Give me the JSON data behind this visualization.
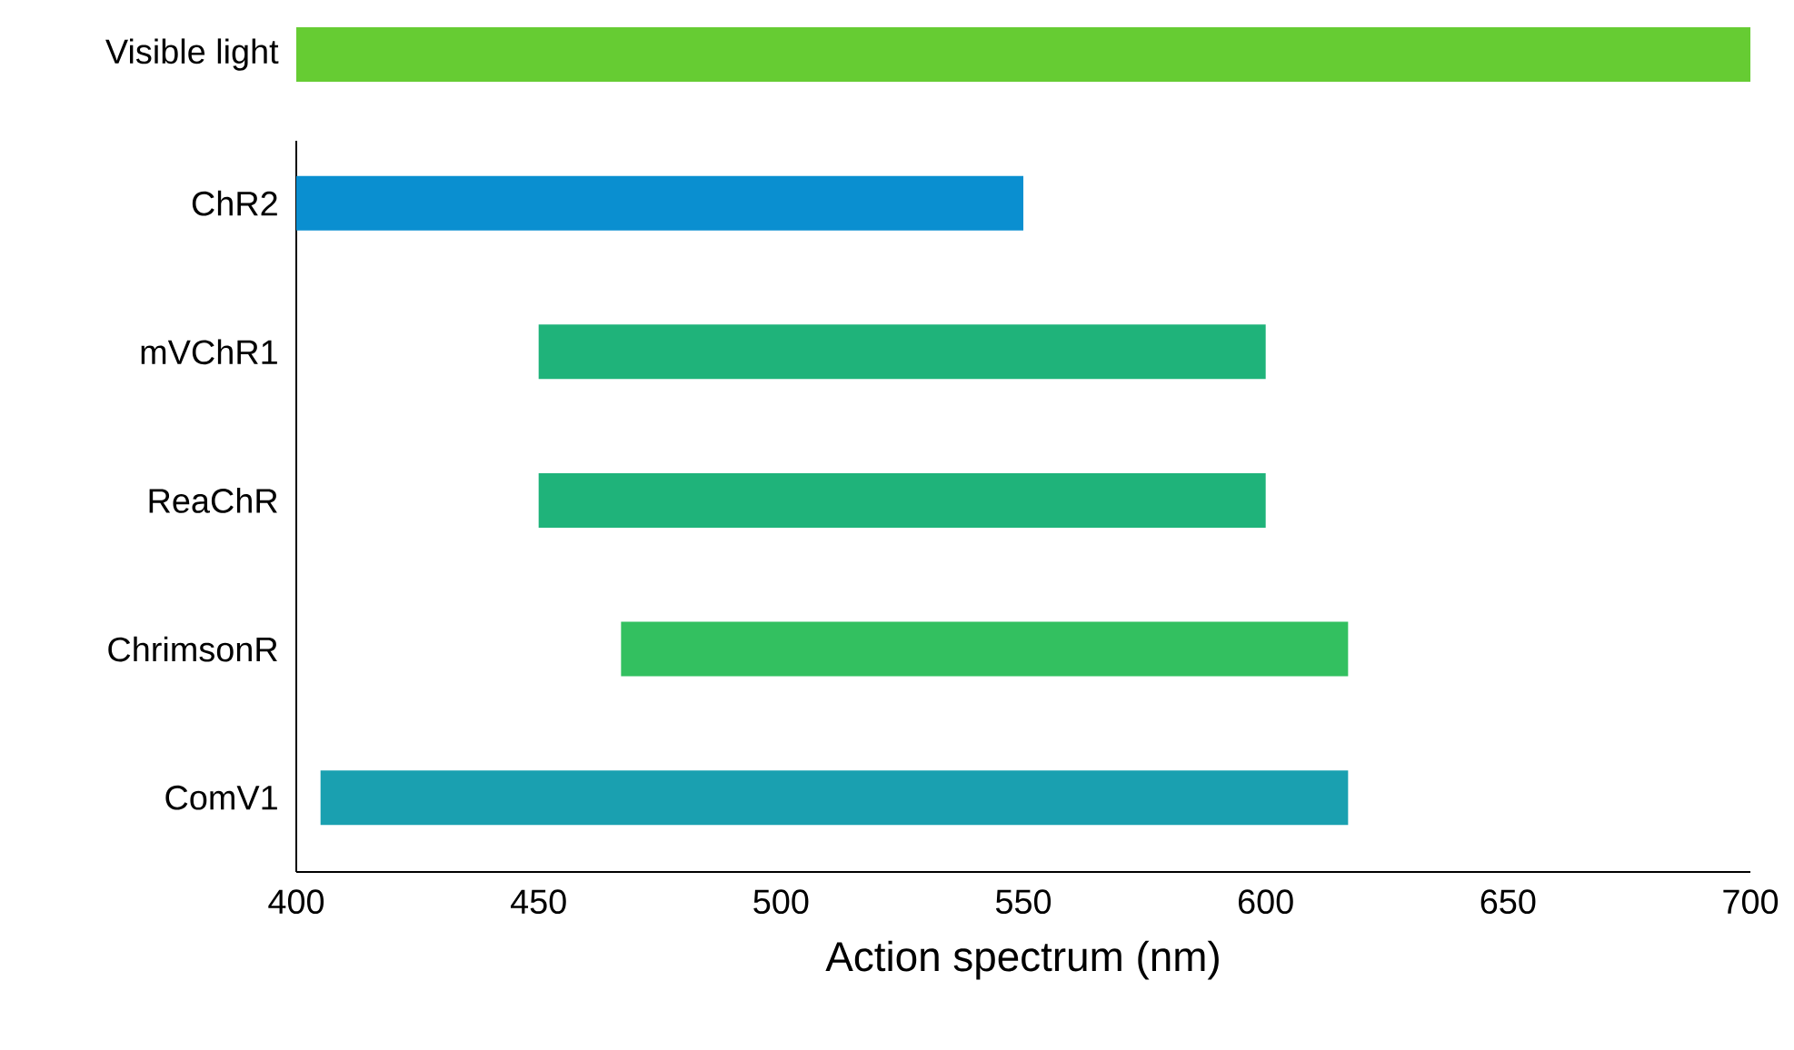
{
  "chart_data": {
    "type": "bar",
    "orientation": "horizontal",
    "categories": [
      "Visible light",
      "ChR2",
      "mVChR1",
      "ReaChR",
      "ChrimsonR",
      "ComV1"
    ],
    "base": [
      400,
      400,
      450,
      450,
      467,
      405
    ],
    "values": [
      300,
      150,
      150,
      150,
      150,
      212
    ],
    "colors": [
      "#66cc33",
      "#0a8fd0",
      "#1fb37a",
      "#1fb37a",
      "#33c060",
      "#1aa0b0"
    ],
    "xlabel": "Action spectrum (nm)",
    "xlim": [
      400,
      700
    ],
    "xticks": [
      400,
      450,
      500,
      550,
      600,
      650,
      700
    ]
  }
}
